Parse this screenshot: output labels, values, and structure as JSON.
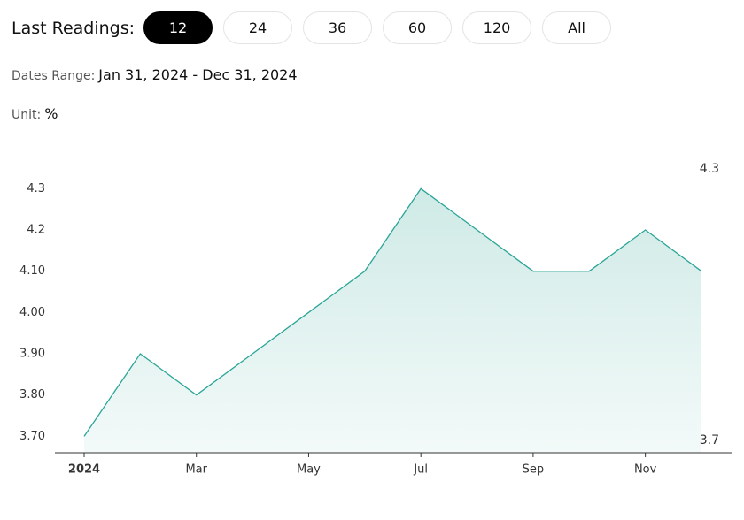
{
  "controls": {
    "label": "Last Readings:",
    "options": [
      "12",
      "24",
      "36",
      "60",
      "120",
      "All"
    ],
    "active": 0
  },
  "dates": {
    "label": "Dates Range:",
    "value": "Jan 31, 2024 - Dec 31, 2024"
  },
  "unit": {
    "label": "Unit:",
    "value": "%"
  },
  "chart_data": {
    "type": "area",
    "categories": [
      "2024",
      null,
      "Mar",
      null,
      "May",
      null,
      "Jul",
      null,
      "Sep",
      null,
      "Nov",
      null
    ],
    "values": [
      3.7,
      3.9,
      3.8,
      3.9,
      4.0,
      4.1,
      4.3,
      4.2,
      4.1,
      4.1,
      4.2,
      4.1
    ],
    "color": "#2aa597",
    "ylim": [
      3.66,
      4.35
    ],
    "yticks": [
      {
        "value": 3.7,
        "label": "3.70"
      },
      {
        "value": 3.8,
        "label": "3.80"
      },
      {
        "value": 3.9,
        "label": "3.90"
      },
      {
        "value": 4.0,
        "label": "4.00"
      },
      {
        "value": 4.1,
        "label": "4.10"
      },
      4.2,
      4.3
    ],
    "max_annotation": 4.3,
    "min_annotation": 3.7
  }
}
